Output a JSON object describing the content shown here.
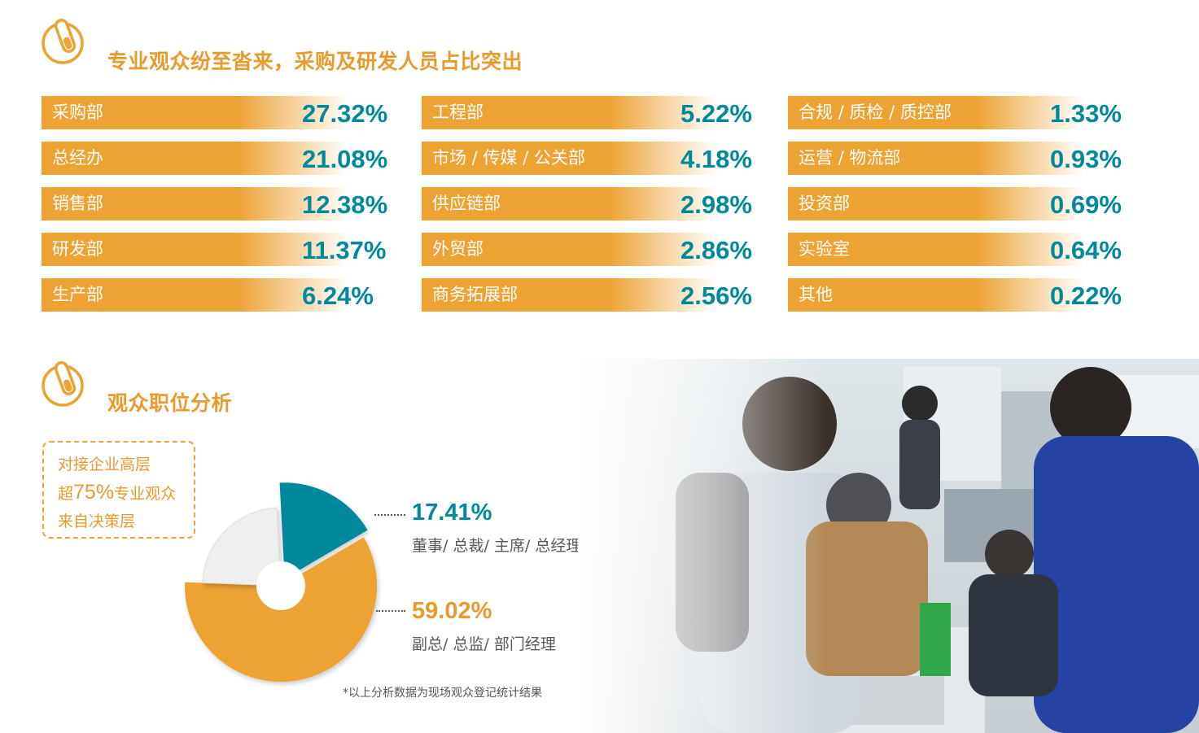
{
  "section1": {
    "title": "专业观众纷至沓来，采购及研发人员占比突出",
    "icon": "test-tube-icon"
  },
  "section2": {
    "title": "观众职位分析",
    "icon": "test-tube-icon"
  },
  "departments": {
    "col1": [
      {
        "label": "采购部",
        "value": "27.32%"
      },
      {
        "label": "总经办",
        "value": "21.08%"
      },
      {
        "label": "销售部",
        "value": "12.38%"
      },
      {
        "label": "研发部",
        "value": "11.37%"
      },
      {
        "label": "生产部",
        "value": "6.24%"
      }
    ],
    "col2": [
      {
        "label": "工程部",
        "value": "5.22%"
      },
      {
        "label": "市场 /  传媒 /  公关部",
        "value": "4.18%"
      },
      {
        "label": "供应链部",
        "value": "2.98%"
      },
      {
        "label": "外贸部",
        "value": "2.86%"
      },
      {
        "label": "商务拓展部",
        "value": "2.56%"
      }
    ],
    "col3": [
      {
        "label": "合规 /  质检 /  质控部",
        "value": "1.33%"
      },
      {
        "label": "运营 /  物流部",
        "value": "0.93%"
      },
      {
        "label": "投资部",
        "value": "0.69%"
      },
      {
        "label": "实验室",
        "value": "0.64%"
      },
      {
        "label": "其他",
        "value": "0.22%"
      }
    ]
  },
  "callout": {
    "line1": "对接企业高层",
    "line2_pre": "超",
    "line2_big": "75%",
    "line2_post": "专业观众",
    "line3": "来自决策层"
  },
  "roles": [
    {
      "pct": "17.41%",
      "label": "董事/ 总裁/ 主席/ 总经理",
      "color": "#00899c"
    },
    {
      "pct": "59.02%",
      "label": "副总/ 总监/ 部门经理",
      "color": "#eda234"
    }
  ],
  "footnote": "*以上分析数据为现场观众登记统计结果",
  "chart_data": [
    {
      "type": "bar",
      "categories": [
        "采购部",
        "总经办",
        "销售部",
        "研发部",
        "生产部",
        "工程部",
        "市场 /  传媒 /  公关部",
        "供应链部",
        "外贸部",
        "商务拓展部",
        "合规 /  质检 /  质控部",
        "运营 /  物流部",
        "投资部",
        "实验室",
        "其他"
      ],
      "values": [
        27.32,
        21.08,
        12.38,
        11.37,
        6.24,
        5.22,
        4.18,
        2.98,
        2.86,
        2.56,
        1.33,
        0.93,
        0.69,
        0.64,
        0.22
      ],
      "title": "专业观众纷至沓来，采购及研发人员占比突出"
    },
    {
      "type": "pie",
      "title": "观众职位分析",
      "slices": [
        {
          "label": "董事/ 总裁/ 主席/ 总经理",
          "value": 17.41,
          "color": "#00899c"
        },
        {
          "label": "副总/ 总监/ 部门经理",
          "value": 59.02,
          "color": "#eda234"
        },
        {
          "label": "",
          "value": 23.57,
          "color": "#efefef"
        }
      ]
    }
  ],
  "photo": {
    "description_icon": "exhibition-photo"
  }
}
